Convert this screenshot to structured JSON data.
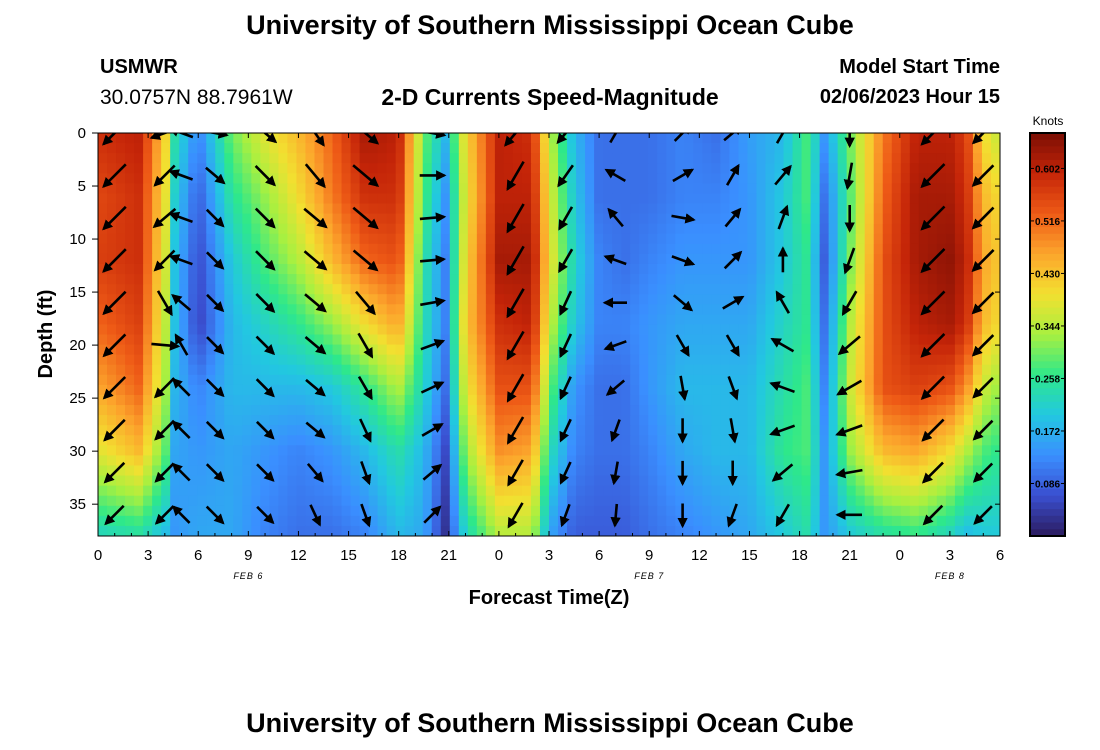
{
  "header": {
    "title": "University of Southern Mississippi Ocean Cube",
    "station_name": "USMWR",
    "coords": "30.0757N  88.7961W",
    "subtitle": "2-D Currents Speed-Magnitude",
    "model_start_label": "Model Start Time",
    "model_start_value": "02/06/2023 Hour 15"
  },
  "footer": {
    "title": "University of Southern Mississippi Ocean Cube"
  },
  "colors": {
    "colormap": [
      "#2b1b5e",
      "#3a4fd0",
      "#3a8fff",
      "#22c8e0",
      "#2ee88a",
      "#a8f040",
      "#f2e030",
      "#fca52c",
      "#ee5a16",
      "#c42408",
      "#7a0e04"
    ],
    "vectors": "#000000",
    "background": "#ffffff"
  },
  "chart_data": {
    "type": "heatmap",
    "title": "2-D Currents Speed-Magnitude",
    "xlabel": "Forecast Time(Z)",
    "ylabel": "Depth (ft)",
    "x_tick_labels": [
      "0",
      "3",
      "6",
      "9",
      "12",
      "15",
      "18",
      "21",
      "0",
      "3",
      "6",
      "9",
      "12",
      "15",
      "18",
      "21",
      "0",
      "3",
      "6"
    ],
    "x_range_hours": [
      0,
      54
    ],
    "date_labels": [
      {
        "label": "FEB 6",
        "hour": 9
      },
      {
        "label": "FEB 7",
        "hour": 33
      },
      {
        "label": "FEB 8",
        "hour": 51
      }
    ],
    "y_ticks": [
      0,
      5,
      10,
      15,
      20,
      25,
      30,
      35
    ],
    "y_range": [
      0,
      38
    ],
    "y_inverted": true,
    "colorbar": {
      "label": "Knots",
      "ticks": [
        "0.086",
        "0.172",
        "0.258",
        "0.344",
        "0.430",
        "0.516",
        "0.602"
      ],
      "tick_values": [
        0.086,
        0.172,
        0.258,
        0.344,
        0.43,
        0.516,
        0.602
      ],
      "range": [
        0.0,
        0.66
      ]
    },
    "speed_field": {
      "hours": [
        0,
        2.5,
        4.1,
        4.5,
        6,
        8,
        10,
        12,
        14,
        16,
        18,
        19.5,
        20.8,
        22,
        24,
        26,
        27,
        28.5,
        30,
        31.5,
        33,
        35,
        37,
        39,
        41,
        42.5,
        43.5,
        45,
        47,
        49,
        51,
        52,
        53,
        54
      ],
      "depths": [
        0,
        6,
        12,
        18,
        24,
        30,
        38
      ],
      "rows": [
        [
          0.58,
          0.6,
          0.4,
          0.25,
          0.12,
          0.3,
          0.38,
          0.44,
          0.52,
          0.62,
          0.6,
          0.3,
          0.18,
          0.4,
          0.6,
          0.58,
          0.35,
          0.18,
          0.1,
          0.1,
          0.1,
          0.12,
          0.1,
          0.15,
          0.18,
          0.28,
          0.14,
          0.3,
          0.5,
          0.6,
          0.6,
          0.56,
          0.4,
          0.35
        ],
        [
          0.55,
          0.58,
          0.38,
          0.22,
          0.08,
          0.25,
          0.32,
          0.4,
          0.5,
          0.58,
          0.58,
          0.28,
          0.14,
          0.38,
          0.6,
          0.6,
          0.38,
          0.2,
          0.1,
          0.1,
          0.1,
          0.12,
          0.12,
          0.14,
          0.2,
          0.28,
          0.1,
          0.28,
          0.52,
          0.62,
          0.62,
          0.58,
          0.44,
          0.4
        ],
        [
          0.56,
          0.58,
          0.36,
          0.2,
          0.06,
          0.2,
          0.28,
          0.34,
          0.44,
          0.52,
          0.54,
          0.25,
          0.12,
          0.4,
          0.62,
          0.62,
          0.4,
          0.22,
          0.12,
          0.1,
          0.12,
          0.14,
          0.14,
          0.14,
          0.2,
          0.26,
          0.08,
          0.3,
          0.54,
          0.62,
          0.64,
          0.6,
          0.46,
          0.42
        ],
        [
          0.52,
          0.56,
          0.34,
          0.2,
          0.05,
          0.18,
          0.22,
          0.26,
          0.32,
          0.4,
          0.46,
          0.24,
          0.12,
          0.42,
          0.58,
          0.6,
          0.36,
          0.2,
          0.12,
          0.12,
          0.14,
          0.16,
          0.16,
          0.16,
          0.22,
          0.26,
          0.1,
          0.34,
          0.54,
          0.6,
          0.62,
          0.58,
          0.44,
          0.4
        ],
        [
          0.46,
          0.52,
          0.32,
          0.18,
          0.12,
          0.18,
          0.18,
          0.18,
          0.2,
          0.26,
          0.34,
          0.22,
          0.1,
          0.38,
          0.54,
          0.54,
          0.3,
          0.14,
          0.1,
          0.1,
          0.14,
          0.18,
          0.18,
          0.18,
          0.24,
          0.28,
          0.12,
          0.36,
          0.54,
          0.56,
          0.54,
          0.48,
          0.36,
          0.32
        ],
        [
          0.38,
          0.44,
          0.28,
          0.16,
          0.14,
          0.16,
          0.14,
          0.12,
          0.14,
          0.18,
          0.24,
          0.18,
          0.06,
          0.32,
          0.48,
          0.46,
          0.24,
          0.12,
          0.1,
          0.1,
          0.12,
          0.16,
          0.18,
          0.18,
          0.26,
          0.28,
          0.14,
          0.32,
          0.44,
          0.46,
          0.4,
          0.34,
          0.28,
          0.26
        ],
        [
          0.22,
          0.24,
          0.18,
          0.14,
          0.16,
          0.16,
          0.12,
          0.1,
          0.1,
          0.12,
          0.18,
          0.16,
          0.03,
          0.22,
          0.34,
          0.34,
          0.16,
          0.08,
          0.08,
          0.08,
          0.1,
          0.12,
          0.14,
          0.16,
          0.2,
          0.24,
          0.14,
          0.2,
          0.24,
          0.26,
          0.22,
          0.18,
          0.2,
          0.2
        ]
      ]
    },
    "vector_depths": [
      0,
      4,
      8,
      12,
      16,
      20,
      24,
      28,
      32,
      36
    ],
    "vector_series": [
      {
        "hour": 1,
        "angles": [
          225,
          225,
          225,
          225,
          225,
          225,
          225,
          225,
          225,
          225
        ]
      },
      {
        "hour": 4,
        "angles": [
          200,
          225,
          220,
          225,
          300,
          355,
          225,
          225,
          225,
          225
        ]
      },
      {
        "hour": 5,
        "angles": [
          160,
          160,
          160,
          160,
          140,
          120,
          135,
          135,
          135,
          135
        ]
      },
      {
        "hour": 7,
        "angles": [
          350,
          320,
          315,
          315,
          315,
          315,
          315,
          315,
          315,
          315
        ]
      },
      {
        "hour": 10,
        "angles": [
          320,
          315,
          315,
          315,
          315,
          315,
          315,
          315,
          315,
          315
        ]
      },
      {
        "hour": 13,
        "angles": [
          305,
          310,
          320,
          320,
          320,
          320,
          320,
          320,
          310,
          295
        ]
      },
      {
        "hour": 16,
        "angles": [
          320,
          320,
          320,
          320,
          310,
          300,
          300,
          295,
          290,
          290
        ]
      },
      {
        "hour": 20,
        "angles": [
          350,
          360,
          5,
          5,
          10,
          20,
          25,
          30,
          40,
          45
        ]
      },
      {
        "hour": 25,
        "angles": [
          230,
          240,
          240,
          240,
          240,
          240,
          240,
          240,
          240,
          240
        ]
      },
      {
        "hour": 28,
        "angles": [
          230,
          235,
          240,
          240,
          245,
          245,
          245,
          245,
          245,
          250
        ]
      },
      {
        "hour": 31,
        "angles": [
          60,
          150,
          130,
          160,
          180,
          200,
          220,
          250,
          260,
          265
        ]
      },
      {
        "hour": 35,
        "angles": [
          45,
          30,
          350,
          340,
          320,
          300,
          280,
          270,
          270,
          270
        ]
      },
      {
        "hour": 38,
        "angles": [
          40,
          60,
          50,
          45,
          30,
          300,
          290,
          280,
          270,
          250
        ]
      },
      {
        "hour": 41,
        "angles": [
          60,
          50,
          70,
          90,
          120,
          150,
          160,
          200,
          220,
          240
        ]
      },
      {
        "hour": 45,
        "angles": [
          270,
          260,
          270,
          250,
          240,
          220,
          210,
          200,
          190,
          180
        ]
      },
      {
        "hour": 50,
        "angles": [
          225,
          225,
          225,
          225,
          225,
          225,
          225,
          225,
          225,
          225
        ]
      },
      {
        "hour": 53,
        "angles": [
          225,
          225,
          225,
          225,
          225,
          225,
          225,
          225,
          225,
          225
        ]
      }
    ],
    "legend": "colorbar right",
    "grid": false
  }
}
